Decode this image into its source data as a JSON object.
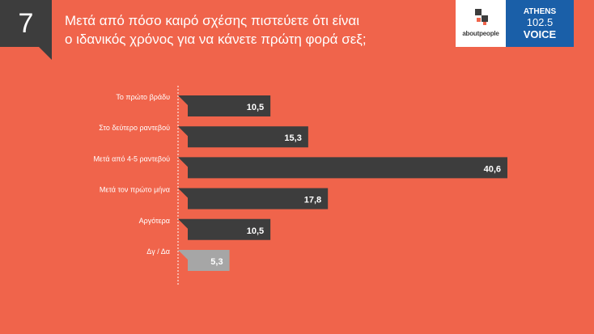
{
  "slide_number": "7",
  "title_lines": [
    "Μετά από πόσο καιρό σχέσης πιστεύετε ότι είναι",
    "ο ιδανικός χρόνος για να κάνετε πρώτη φορά σεξ;"
  ],
  "logos": {
    "aboutpeople": "aboutpeople",
    "athens_line1": "ATHENS",
    "athens_line2": "102.5",
    "athens_line3": "VOICE"
  },
  "colors": {
    "background": "#f0644b",
    "bar_dark": "#3d3d3d",
    "bar_light": "#a6a6a6",
    "athens_blue": "#1a5fa8"
  },
  "chart_data": {
    "type": "bar",
    "orientation": "horizontal",
    "categories": [
      "Το πρώτο βράδυ",
      "Στο δεύτερο ραντεβού",
      "Μετά από 4-5 ραντεβού",
      "Μετά τον πρώτο μήνα",
      "Αργότερα",
      "Δγ / Δα"
    ],
    "values": [
      10.5,
      15.3,
      40.6,
      17.8,
      10.5,
      5.3
    ],
    "value_labels": [
      "10,5",
      "15,3",
      "40,6",
      "17,8",
      "10,5",
      "5,3"
    ],
    "highlight": [
      false,
      false,
      false,
      false,
      false,
      true
    ],
    "xlim": [
      0,
      40.6
    ],
    "grid": false
  }
}
